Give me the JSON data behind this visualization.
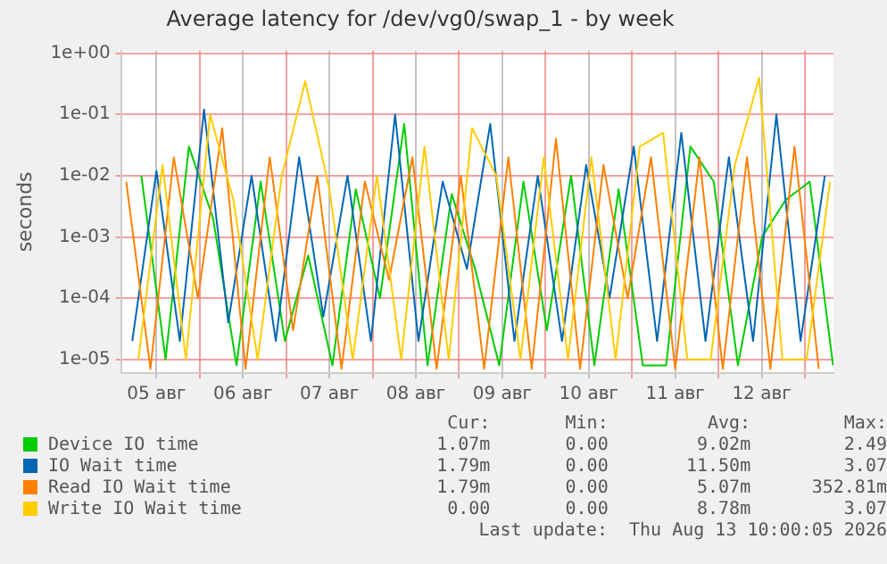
{
  "chart_data": {
    "type": "line",
    "title": "Average latency for /dev/vg0/swap_1 - by week",
    "ylabel": "seconds",
    "log": true,
    "grid": true,
    "legend": "bottom",
    "xlim": [
      5.09,
      13.33
    ],
    "xticks": [
      {
        "value": 5.5,
        "label": "05 авг"
      },
      {
        "value": 6,
        "label": null
      },
      {
        "value": 6.5,
        "label": "06 авг"
      },
      {
        "value": 7,
        "label": null
      },
      {
        "value": 7.5,
        "label": "07 авг"
      },
      {
        "value": 8,
        "label": null
      },
      {
        "value": 8.5,
        "label": "08 авг"
      },
      {
        "value": 9,
        "label": null
      },
      {
        "value": 9.5,
        "label": "09 авг"
      },
      {
        "value": 10,
        "label": null
      },
      {
        "value": 10.5,
        "label": "10 авг"
      },
      {
        "value": 11,
        "label": null
      },
      {
        "value": 11.5,
        "label": "11 авг"
      },
      {
        "value": 12,
        "label": null
      },
      {
        "value": 12.5,
        "label": "12 авг"
      },
      {
        "value": 13,
        "label": null
      }
    ],
    "ylim": [
      6e-06,
      1.1
    ],
    "yticks": [
      {
        "value": 1e-05,
        "label": "1e-05"
      },
      {
        "value": 0.0001,
        "label": "1e-04"
      },
      {
        "value": 0.001,
        "label": "1e-03"
      },
      {
        "value": 0.01,
        "label": "1e-02"
      },
      {
        "value": 0.1,
        "label": "1e-01"
      },
      {
        "value": 1,
        "label": "1e+00"
      }
    ],
    "series": [
      {
        "name": "Device IO time",
        "color": "#00cc00",
        "x": [
          5.325,
          5.605,
          5.875,
          6.155,
          6.425,
          6.705,
          6.985,
          7.255,
          7.535,
          7.805,
          8.085,
          8.365,
          8.635,
          8.915,
          9.185,
          9.465,
          9.745,
          10.015,
          10.295,
          10.565,
          10.845,
          11.125,
          11.395,
          11.675,
          11.945,
          12.225,
          12.505,
          12.775,
          13.055,
          13.325
        ],
        "values": [
          0.01,
          1e-05,
          0.03,
          0.002,
          8e-06,
          0.008,
          2e-05,
          0.0005,
          8e-06,
          0.006,
          0.0001,
          0.07,
          8e-06,
          0.005,
          0.0003,
          8e-06,
          0.008,
          3e-05,
          0.01,
          8e-06,
          0.006,
          8e-06,
          8e-06,
          0.03,
          0.008,
          8e-06,
          0.001,
          0.004,
          0.008,
          8e-06
        ]
      },
      {
        "name": "IO Wait time",
        "color": "#0066b3",
        "x": [
          5.22,
          5.5,
          5.77,
          6.05,
          6.33,
          6.6,
          6.88,
          7.15,
          7.43,
          7.71,
          7.98,
          8.26,
          8.53,
          8.81,
          9.09,
          9.36,
          9.64,
          9.91,
          10.19,
          10.47,
          10.74,
          11.02,
          11.29,
          11.57,
          11.85,
          12.12,
          12.4,
          12.67,
          12.95,
          13.23
        ],
        "values": [
          2e-05,
          0.012,
          2e-05,
          0.12,
          4e-05,
          0.01,
          2e-05,
          0.02,
          5e-05,
          0.01,
          2e-05,
          0.1,
          2e-05,
          0.008,
          0.0003,
          0.07,
          2e-05,
          0.01,
          2e-05,
          0.015,
          0.0001,
          0.03,
          2e-05,
          0.05,
          2e-05,
          0.02,
          2e-05,
          0.1,
          2e-05,
          0.01
        ]
      },
      {
        "name": "Read IO Wait time",
        "color": "#ff8000",
        "x": [
          5.15,
          5.43,
          5.7,
          5.98,
          6.26,
          6.53,
          6.81,
          7.08,
          7.36,
          7.64,
          7.91,
          8.19,
          8.46,
          8.74,
          9.02,
          9.29,
          9.57,
          9.84,
          10.12,
          10.4,
          10.67,
          10.95,
          11.22,
          11.5,
          11.78,
          12.05,
          12.33,
          12.6,
          12.88,
          13.16
        ],
        "values": [
          0.008,
          7e-06,
          0.02,
          0.0001,
          0.06,
          7e-06,
          0.02,
          3e-05,
          0.01,
          7e-06,
          0.008,
          0.0002,
          0.02,
          7e-06,
          0.01,
          7e-06,
          0.02,
          7e-06,
          0.04,
          7e-06,
          0.015,
          0.0001,
          0.02,
          7e-06,
          0.02,
          7e-06,
          0.02,
          7e-06,
          0.03,
          7e-06
        ]
      },
      {
        "name": "Write IO Wait time",
        "color": "#ffcc00",
        "x": [
          5.29,
          5.57,
          5.84,
          6.12,
          6.39,
          6.67,
          6.95,
          7.22,
          7.5,
          7.77,
          8.05,
          8.33,
          8.6,
          8.88,
          9.15,
          9.43,
          9.71,
          9.98,
          10.26,
          10.53,
          10.81,
          11.09,
          11.36,
          11.64,
          11.91,
          12.19,
          12.47,
          12.74,
          13.02,
          13.29
        ],
        "values": [
          1e-05,
          0.015,
          1e-05,
          0.1,
          0.004,
          1e-05,
          0.01,
          0.35,
          0.006,
          1e-05,
          0.01,
          1e-05,
          0.03,
          1e-05,
          0.06,
          0.01,
          1e-05,
          0.02,
          1e-05,
          0.02,
          1e-05,
          0.03,
          0.05,
          1e-05,
          1e-05,
          0.015,
          0.4,
          1e-05,
          1e-05,
          0.008
        ]
      }
    ],
    "annotations": [
      "Cur:",
      "Min:",
      "Avg:",
      "Max:",
      "1.07m",
      "0.00",
      "9.02m",
      "2.49",
      "1.79m",
      "0.00",
      "11.50m",
      "3.07",
      "1.79m",
      "0.00",
      "5.07m",
      "352.81m",
      "0.00",
      "0.00",
      "8.78m",
      "3.07",
      "Last update:  Thu Aug 13 10:00:05 2026"
    ]
  }
}
